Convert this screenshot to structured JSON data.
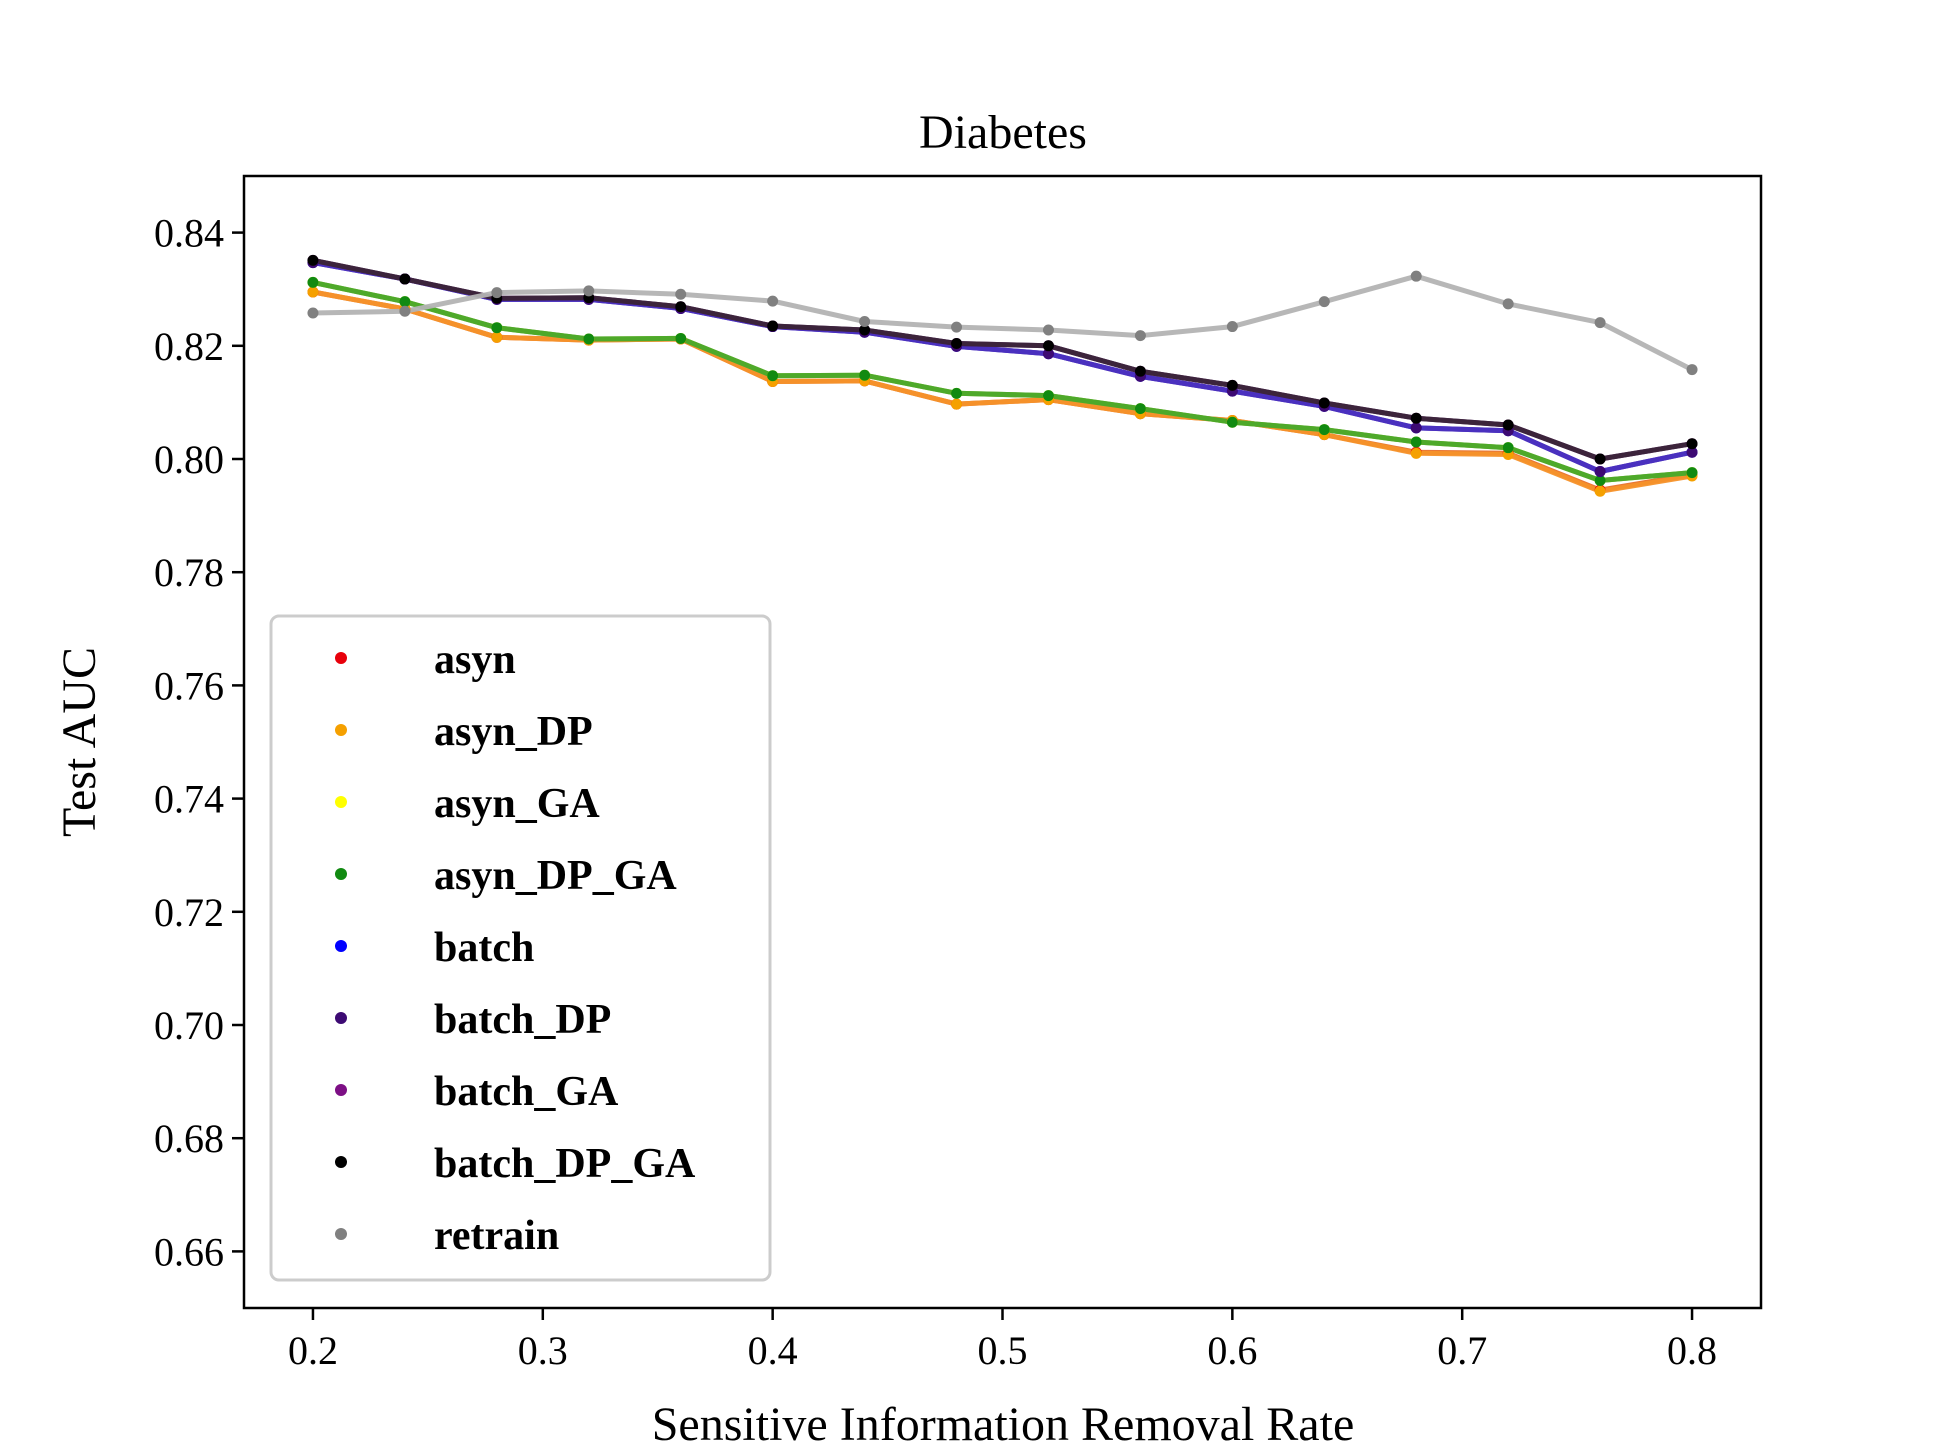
{
  "chart_data": {
    "type": "line",
    "title": "Diabetes",
    "xlabel": "Sensitive Information Removal Rate",
    "ylabel": "Test AUC",
    "xlim": [
      0.17,
      0.83
    ],
    "ylim": [
      0.65,
      0.85
    ],
    "xticks": [
      0.2,
      0.3,
      0.4,
      0.5,
      0.6,
      0.7,
      0.8
    ],
    "xtick_labels": [
      "0.2",
      "0.3",
      "0.4",
      "0.5",
      "0.6",
      "0.7",
      "0.8"
    ],
    "yticks": [
      0.66,
      0.68,
      0.7,
      0.72,
      0.74,
      0.76,
      0.78,
      0.8,
      0.82,
      0.84
    ],
    "ytick_labels": [
      "0.66",
      "0.68",
      "0.70",
      "0.72",
      "0.74",
      "0.76",
      "0.78",
      "0.80",
      "0.82",
      "0.84"
    ],
    "grid": false,
    "legend_position": "lower-left",
    "x": [
      0.2,
      0.24,
      0.28,
      0.32,
      0.36,
      0.4,
      0.44,
      0.48,
      0.52,
      0.56,
      0.6,
      0.64,
      0.68,
      0.72,
      0.76,
      0.8
    ],
    "series": [
      {
        "name": "asyn",
        "color": "#e8000b",
        "line_color": "#e8712a",
        "values": [
          0.8295,
          0.8265,
          0.8215,
          0.821,
          0.8212,
          0.8137,
          0.8138,
          0.8097,
          0.8105,
          0.808,
          0.8068,
          0.8043,
          0.8012,
          0.801,
          0.7945,
          0.7972
        ]
      },
      {
        "name": "asyn_DP",
        "color": "#f5a000",
        "line_color": "#f5922a",
        "values": [
          0.8295,
          0.8265,
          0.8215,
          0.821,
          0.8212,
          0.8137,
          0.8138,
          0.8097,
          0.8105,
          0.808,
          0.8068,
          0.8043,
          0.801,
          0.8008,
          0.7943,
          0.797
        ]
      },
      {
        "name": "asyn_GA",
        "color": "#ffff00",
        "line_color": "#8fc22a",
        "values": [
          0.8312,
          0.8278,
          0.8232,
          0.8212,
          0.8213,
          0.8147,
          0.8148,
          0.8116,
          0.8112,
          0.8089,
          0.8065,
          0.8052,
          0.803,
          0.802,
          0.7962,
          0.7976
        ]
      },
      {
        "name": "asyn_DP_GA",
        "color": "#118a11",
        "line_color": "#4aa82a",
        "values": [
          0.8312,
          0.8278,
          0.8232,
          0.8212,
          0.8213,
          0.8147,
          0.8148,
          0.8116,
          0.8112,
          0.8089,
          0.8065,
          0.8052,
          0.803,
          0.802,
          0.7962,
          0.7976
        ]
      },
      {
        "name": "batch",
        "color": "#0000ff",
        "line_color": "#4a2fbf",
        "values": [
          0.8347,
          0.8318,
          0.8282,
          0.8282,
          0.8266,
          0.8234,
          0.8224,
          0.8199,
          0.8186,
          0.8146,
          0.812,
          0.8093,
          0.8055,
          0.805,
          0.7978,
          0.8012
        ]
      },
      {
        "name": "batch_DP",
        "color": "#3d0a73",
        "line_color": "#4a2fbf",
        "values": [
          0.8347,
          0.8318,
          0.8282,
          0.8282,
          0.8266,
          0.8234,
          0.8224,
          0.8199,
          0.8186,
          0.8146,
          0.812,
          0.8093,
          0.8055,
          0.805,
          0.7978,
          0.8012
        ]
      },
      {
        "name": "batch_GA",
        "color": "#7d0f85",
        "line_color": "#5a1e6e",
        "values": [
          0.8351,
          0.8318,
          0.8284,
          0.8285,
          0.8269,
          0.8235,
          0.8228,
          0.8204,
          0.82,
          0.8155,
          0.813,
          0.8099,
          0.8072,
          0.806,
          0.8,
          0.8027
        ]
      },
      {
        "name": "batch_DP_GA",
        "color": "#000000",
        "line_color": "#3a2438",
        "values": [
          0.8351,
          0.8318,
          0.8284,
          0.8285,
          0.8269,
          0.8235,
          0.8228,
          0.8204,
          0.82,
          0.8155,
          0.813,
          0.8099,
          0.8072,
          0.806,
          0.8,
          0.8027
        ]
      },
      {
        "name": "retrain",
        "color": "#808080",
        "line_color": "#b3b3b3",
        "values": [
          0.8258,
          0.8261,
          0.8294,
          0.8297,
          0.8291,
          0.8279,
          0.8243,
          0.8233,
          0.8228,
          0.8218,
          0.8234,
          0.8278,
          0.8323,
          0.8274,
          0.8241,
          0.8158
        ]
      }
    ]
  }
}
